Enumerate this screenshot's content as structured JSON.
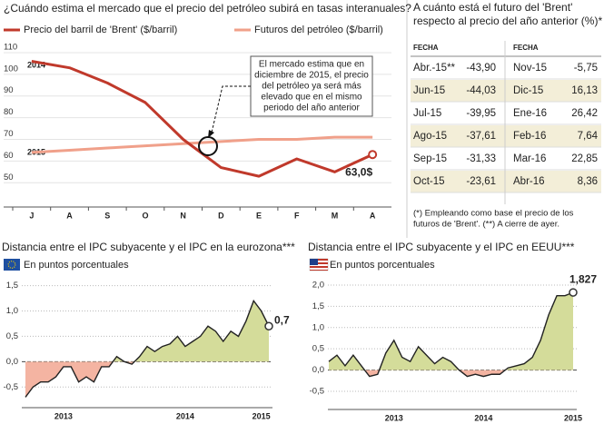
{
  "chart_data": [
    {
      "type": "line",
      "title": "¿Cuándo estima el mercado que el precio del petróleo subirá en tasas interanuales?",
      "categories": [
        "J",
        "A",
        "S",
        "O",
        "N",
        "D",
        "E",
        "F",
        "M",
        "A"
      ],
      "series": [
        {
          "name": "Precio del barril de 'Brent' ($/barril)",
          "color": "#c0392b",
          "values": [
            106,
            103,
            96,
            87,
            70,
            57,
            53,
            61,
            55,
            63
          ],
          "value_labels": [
            null,
            null,
            null,
            null,
            null,
            null,
            null,
            null,
            null,
            "63,0$"
          ]
        },
        {
          "name": "Futuros del petróleo ($/barril)",
          "color": "#f0a08a",
          "values": [
            64,
            65,
            66,
            67,
            68,
            69,
            70,
            70,
            71,
            71
          ]
        }
      ],
      "ylim": [
        43,
        115
      ],
      "yticks": [
        50,
        60,
        70,
        80,
        90,
        100,
        110
      ],
      "annotations": [
        "2014",
        "2015"
      ],
      "callout": [
        "El mercado estima que en",
        "diciembre de 2015, el precio",
        "del petróleo ya será más",
        "elevado que en el mismo",
        "periodo del año anterior"
      ]
    },
    {
      "type": "area",
      "title": "Distancia entre el IPC subyacente y el IPC en la eurozona***",
      "subtitle": "En puntos porcentuales",
      "categories": [
        null,
        null,
        null,
        null,
        null,
        "2013",
        null,
        null,
        null,
        null,
        null,
        null,
        null,
        null,
        null,
        null,
        null,
        null,
        null,
        null,
        null,
        "2014",
        null,
        null,
        null,
        null,
        null,
        null,
        null,
        null,
        null,
        "2015",
        null
      ],
      "values": [
        -0.7,
        -0.5,
        -0.4,
        -0.4,
        -0.3,
        -0.1,
        -0.1,
        -0.4,
        -0.3,
        -0.4,
        -0.1,
        -0.1,
        0.1,
        0.0,
        -0.05,
        0.1,
        0.3,
        0.2,
        0.3,
        0.35,
        0.5,
        0.3,
        0.4,
        0.5,
        0.7,
        0.6,
        0.4,
        0.6,
        0.5,
        0.8,
        1.2,
        1.0,
        0.7
      ],
      "value_labels": [
        null,
        null,
        null,
        null,
        null,
        null,
        null,
        null,
        null,
        null,
        null,
        null,
        null,
        null,
        null,
        null,
        null,
        null,
        null,
        null,
        null,
        null,
        null,
        null,
        null,
        null,
        null,
        null,
        null,
        null,
        null,
        null,
        "0,7"
      ],
      "ylim": [
        -0.8,
        1.6
      ],
      "yticks": [
        {
          "value": -0.5,
          "label": "-0,5"
        },
        {
          "value": 0,
          "label": "0,0"
        },
        {
          "value": 0.5,
          "label": "0,5"
        },
        {
          "value": 1,
          "label": "1,0"
        },
        {
          "value": 1.5,
          "label": "1,5"
        }
      ],
      "color_positive": "#d4dc9a",
      "color_negative": "#f4b4a2",
      "line_color": "#222"
    },
    {
      "type": "area",
      "title": "Distancia entre el IPC subyacente y el IPC en EEUU***",
      "subtitle": "En puntos porcentuales",
      "categories": [
        null,
        null,
        null,
        null,
        null,
        null,
        null,
        null,
        "2013",
        null,
        null,
        null,
        null,
        null,
        null,
        null,
        null,
        null,
        null,
        "2014",
        null,
        null,
        null,
        null,
        null,
        null,
        null,
        null,
        null,
        null,
        "2015"
      ],
      "values": [
        0.2,
        0.35,
        0.1,
        0.35,
        0.1,
        -0.15,
        -0.1,
        0.4,
        0.7,
        0.3,
        0.2,
        0.55,
        0.35,
        0.15,
        0.3,
        0.2,
        0.0,
        -0.15,
        -0.1,
        -0.15,
        -0.1,
        -0.1,
        0.05,
        0.1,
        0.15,
        0.3,
        0.7,
        1.3,
        1.75,
        1.75,
        1.827
      ],
      "value_labels": [
        null,
        null,
        null,
        null,
        null,
        null,
        null,
        null,
        null,
        null,
        null,
        null,
        null,
        null,
        null,
        null,
        null,
        null,
        null,
        null,
        null,
        null,
        null,
        null,
        null,
        null,
        null,
        null,
        null,
        null,
        "1,827"
      ],
      "ylim": [
        -0.8,
        2.15
      ],
      "yticks": [
        {
          "value": -0.5,
          "label": "-0,5"
        },
        {
          "value": 0,
          "label": "0,0"
        },
        {
          "value": 0.5,
          "label": "0,5"
        },
        {
          "value": 1,
          "label": "1,0"
        },
        {
          "value": 1.5,
          "label": "1,5"
        },
        {
          "value": 2,
          "label": "2,0"
        }
      ],
      "color_positive": "#d4dc9a",
      "color_negative": "#f4b4a2",
      "line_color": "#222"
    }
  ],
  "table": {
    "title": [
      "A cuánto está el futuro del 'Brent'",
      "respecto al precio del año anterior (%)*"
    ],
    "headers": [
      "FECHA",
      "FECHA"
    ],
    "rows": [
      [
        "Abr.-15**",
        "-43,90",
        "Nov-15",
        "-5,75"
      ],
      [
        "Jun-15",
        "-44,03",
        "Dic-15",
        "16,13"
      ],
      [
        "Jul-15",
        "-39,95",
        "Ene-16",
        "26,42"
      ],
      [
        "Ago-15",
        "-37,61",
        "Feb-16",
        "7,64"
      ],
      [
        "Sep-15",
        "-31,33",
        "Mar-16",
        "22,85"
      ],
      [
        "Oct-15",
        "-23,61",
        "Abr-16",
        "8,36"
      ]
    ],
    "footnote": [
      "(*) Empleando como base el precio de los",
      "futuros de 'Brent'. (**) A cierre de ayer."
    ]
  }
}
